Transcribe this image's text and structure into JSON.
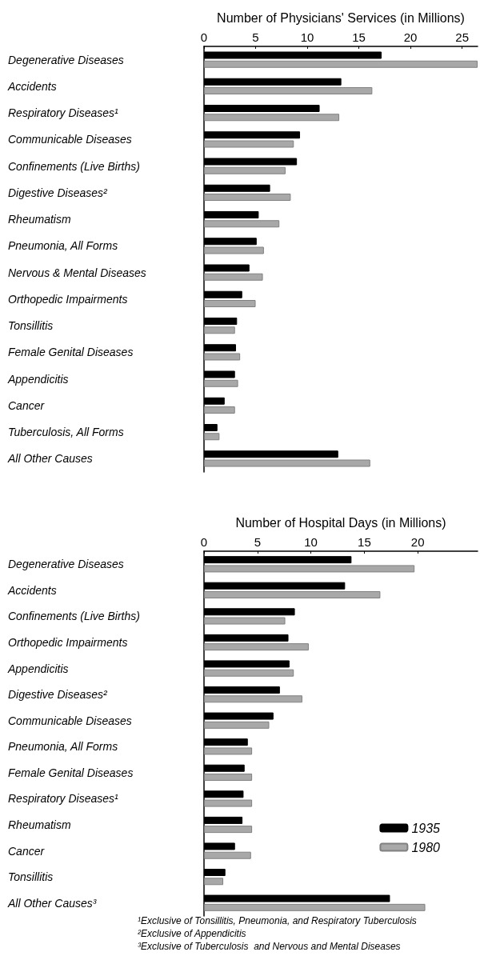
{
  "chart_data": [
    {
      "type": "bar",
      "orientation": "horizontal",
      "xlabel": "Number of Physicians' Services (in Millions)",
      "categories": [
        "Degenerative Diseases",
        "Accidents",
        "Respiratory Diseases¹",
        "Communicable Diseases",
        "Confinements (Live Births)",
        "Digestive Diseases²",
        "Rheumatism",
        "Pneumonia, All Forms",
        "Nervous & Mental Diseases",
        "Orthopedic Impairments",
        "Tonsillitis",
        "Female Genital Diseases",
        "Appendicitis",
        "Cancer",
        "Tuberculosis, All Forms",
        "All Other Causes"
      ],
      "series": [
        {
          "color": "#000000",
          "values": [
            17.2,
            13.3,
            11.2,
            9.3,
            9.0,
            6.4,
            5.3,
            5.1,
            4.4,
            3.7,
            3.2,
            3.1,
            3.0,
            2.0,
            1.3,
            13.0
          ]
        },
        {
          "color": "#a8a8a8",
          "values": [
            26.5,
            16.3,
            13.1,
            8.7,
            7.9,
            8.4,
            7.3,
            5.8,
            5.7,
            5.0,
            3.0,
            3.5,
            3.3,
            3.0,
            1.5,
            16.1
          ]
        }
      ],
      "xlim": [
        0,
        26.5
      ],
      "xticks": [
        0,
        5,
        10,
        15,
        20,
        25
      ],
      "grid": false,
      "legend": false
    },
    {
      "type": "bar",
      "orientation": "horizontal",
      "xlabel": "Number of Hospital Days (in Millions)",
      "categories": [
        "Degenerative Diseases",
        "Accidents",
        "Confinements (Live Births)",
        "Orthopedic Impairments",
        "Appendicitis",
        "Digestive Diseases²",
        "Communicable Diseases",
        "Pneumonia, All Forms",
        "Female Genital Diseases",
        "Respiratory Diseases¹",
        "Rheumatism",
        "Cancer",
        "Tonsillitis",
        "All Other Causes³"
      ],
      "series": [
        {
          "name": "1935",
          "color": "#000000",
          "values": [
            13.8,
            13.2,
            8.5,
            7.9,
            8.0,
            7.1,
            6.5,
            4.1,
            3.8,
            3.7,
            3.6,
            2.9,
            2.0,
            17.4
          ]
        },
        {
          "name": "1980",
          "color": "#a8a8a8",
          "values": [
            19.7,
            16.5,
            7.6,
            9.8,
            8.4,
            9.2,
            6.1,
            4.5,
            4.5,
            4.5,
            4.5,
            4.4,
            1.8,
            20.7
          ]
        }
      ],
      "xlim": [
        0,
        25.6
      ],
      "xticks": [
        0,
        5,
        10,
        15,
        20
      ],
      "grid": false,
      "legend": "right",
      "annotations": [
        "¹Exclusive of Tonsillitis, Pneumonia, and Respiratory Tuberculosis",
        "²Exclusive of Appendicitis",
        "³Exclusive of Tuberculosis  and Nervous and Mental Diseases"
      ]
    }
  ]
}
